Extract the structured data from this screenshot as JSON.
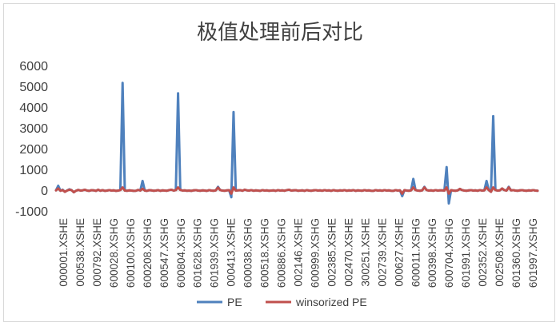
{
  "chart_data": {
    "type": "line",
    "title": "极值处理前后对比",
    "xlabel": "",
    "ylabel": "",
    "ylim": [
      -1000,
      6000
    ],
    "yticks": [
      -1000,
      0,
      1000,
      2000,
      3000,
      4000,
      5000,
      6000
    ],
    "grid": false,
    "legend": "bottom",
    "x_tick_labels": [
      "000001.XSHE",
      "000538.XSHE",
      "000792.XSHE",
      "600028.XSHG",
      "600100.XSHG",
      "600208.XSHG",
      "600547.XSHG",
      "600804.XSHG",
      "601628.XSHG",
      "601939.XSHG",
      "000413.XSHE",
      "600038.XSHG",
      "600518.XSHG",
      "600886.XSHG",
      "002146.XSHE",
      "600999.XSHG",
      "002385.XSHE",
      "002470.XSHE",
      "300251.XSHE",
      "002739.XSHE",
      "000627.XSHE",
      "600011.XSHG",
      "600398.XSHG",
      "600704.XSHG",
      "601991.XSHG",
      "002352.XSHE",
      "002508.XSHE",
      "601360.XSHG",
      "601997.XSHG"
    ],
    "series": [
      {
        "name": "PE",
        "color": "#4f81bd",
        "values": [
          30,
          250,
          10,
          60,
          -40,
          20,
          80,
          40,
          -60,
          10,
          50,
          20,
          30,
          60,
          20,
          5,
          40,
          30,
          5,
          60,
          10,
          40,
          5,
          20,
          40,
          20,
          30,
          5,
          20,
          40,
          5200,
          20,
          10,
          30,
          20,
          5,
          10,
          50,
          20,
          480,
          20,
          5,
          40,
          30,
          10,
          20,
          40,
          5,
          30,
          20,
          10,
          40,
          60,
          20,
          40,
          4700,
          50,
          20,
          30,
          10,
          20,
          5,
          30,
          40,
          20,
          10,
          30,
          20,
          5,
          40,
          20,
          10,
          30,
          200,
          40,
          20,
          10,
          30,
          40,
          -300,
          3800,
          20,
          30,
          40,
          10,
          60,
          30,
          20,
          40,
          10,
          30,
          20,
          5,
          40,
          20,
          30,
          10,
          20,
          30,
          5,
          40,
          20,
          30,
          10,
          40,
          60,
          20,
          30,
          40,
          10,
          20,
          30,
          5,
          40,
          20,
          10,
          30,
          40,
          20,
          30,
          10,
          40,
          20,
          30,
          5,
          40,
          20,
          10,
          30,
          20,
          40,
          10,
          30,
          20,
          40,
          5,
          30,
          20,
          10,
          40,
          20,
          30,
          10,
          5,
          40,
          20,
          30,
          10,
          40,
          20,
          30,
          10,
          5,
          40,
          20,
          30,
          -250,
          40,
          20,
          10,
          30,
          580,
          40,
          20,
          10,
          30,
          200,
          40,
          20,
          30,
          10,
          40,
          20,
          30,
          30,
          20,
          1150,
          -600,
          40,
          20,
          10,
          30,
          100,
          40,
          20,
          10,
          30,
          40,
          20,
          30,
          10,
          40,
          20,
          30,
          480,
          40,
          -40,
          3600,
          40,
          20,
          30,
          120,
          40,
          20,
          200,
          30,
          40,
          20,
          10,
          30,
          40,
          20,
          10,
          30,
          20,
          40,
          20,
          10
        ]
      },
      {
        "name": "winsorized PE",
        "color": "#c0504d",
        "values": [
          30,
          120,
          10,
          40,
          -40,
          20,
          60,
          40,
          -60,
          10,
          50,
          20,
          30,
          60,
          20,
          5,
          40,
          30,
          5,
          60,
          10,
          40,
          5,
          20,
          40,
          20,
          30,
          5,
          20,
          40,
          170,
          20,
          10,
          30,
          20,
          5,
          10,
          50,
          20,
          110,
          20,
          5,
          40,
          30,
          10,
          20,
          40,
          5,
          30,
          20,
          10,
          40,
          60,
          20,
          40,
          170,
          50,
          20,
          30,
          10,
          20,
          5,
          30,
          40,
          20,
          10,
          30,
          20,
          5,
          40,
          20,
          10,
          30,
          160,
          40,
          20,
          10,
          30,
          40,
          -130,
          170,
          20,
          30,
          40,
          10,
          60,
          30,
          20,
          40,
          10,
          30,
          20,
          5,
          40,
          20,
          30,
          10,
          20,
          30,
          5,
          40,
          20,
          30,
          10,
          40,
          60,
          20,
          30,
          40,
          10,
          20,
          30,
          5,
          40,
          20,
          10,
          30,
          40,
          20,
          30,
          10,
          40,
          20,
          30,
          5,
          40,
          20,
          10,
          30,
          20,
          40,
          10,
          30,
          20,
          40,
          5,
          30,
          20,
          10,
          40,
          20,
          30,
          10,
          5,
          40,
          20,
          30,
          10,
          40,
          20,
          30,
          10,
          5,
          40,
          20,
          30,
          -130,
          40,
          20,
          10,
          30,
          170,
          40,
          20,
          10,
          30,
          170,
          40,
          20,
          30,
          10,
          40,
          20,
          30,
          30,
          20,
          170,
          -130,
          40,
          20,
          10,
          30,
          100,
          40,
          20,
          10,
          30,
          40,
          20,
          30,
          10,
          40,
          20,
          30,
          170,
          40,
          -40,
          170,
          40,
          20,
          30,
          120,
          40,
          20,
          170,
          30,
          40,
          20,
          10,
          30,
          40,
          20,
          10,
          30,
          20,
          40,
          20,
          10
        ]
      }
    ]
  }
}
